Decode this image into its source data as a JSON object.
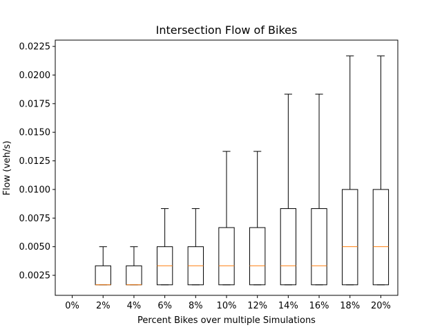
{
  "chart_data": {
    "type": "box",
    "title": "Intersection Flow of Bikes",
    "xlabel": "Percent Bikes over multiple Simulations",
    "ylabel": "Flow (veh/s)",
    "categories": [
      "0%",
      "2%",
      "4%",
      "6%",
      "8%",
      "10%",
      "12%",
      "14%",
      "16%",
      "18%",
      "20%"
    ],
    "ylim": [
      0.00075,
      0.02305
    ],
    "yticks": [
      0.0025,
      0.005,
      0.0075,
      0.01,
      0.0125,
      0.015,
      0.0175,
      0.02,
      0.0225
    ],
    "ytick_labels": [
      "0.0025",
      "0.0050",
      "0.0075",
      "0.0100",
      "0.0125",
      "0.0150",
      "0.0175",
      "0.0200",
      "0.0225"
    ],
    "boxes": [
      {
        "min": null,
        "q1": null,
        "median": null,
        "q3": null,
        "max": null
      },
      {
        "min": 0.00167,
        "q1": 0.00167,
        "median": 0.00167,
        "q3": 0.00333,
        "max": 0.005
      },
      {
        "min": 0.00167,
        "q1": 0.00167,
        "median": 0.00167,
        "q3": 0.00333,
        "max": 0.005
      },
      {
        "min": 0.00167,
        "q1": 0.00167,
        "median": 0.00333,
        "q3": 0.005,
        "max": 0.00833
      },
      {
        "min": 0.00167,
        "q1": 0.00167,
        "median": 0.00333,
        "q3": 0.005,
        "max": 0.00833
      },
      {
        "min": 0.00167,
        "q1": 0.00167,
        "median": 0.00333,
        "q3": 0.00667,
        "max": 0.01333
      },
      {
        "min": 0.00167,
        "q1": 0.00167,
        "median": 0.00333,
        "q3": 0.00667,
        "max": 0.01333
      },
      {
        "min": 0.00167,
        "q1": 0.00167,
        "median": 0.00333,
        "q3": 0.00833,
        "max": 0.01833
      },
      {
        "min": 0.00167,
        "q1": 0.00167,
        "median": 0.00333,
        "q3": 0.00833,
        "max": 0.01833
      },
      {
        "min": 0.00167,
        "q1": 0.00167,
        "median": 0.005,
        "q3": 0.01,
        "max": 0.02167
      },
      {
        "min": 0.00167,
        "q1": 0.00167,
        "median": 0.005,
        "q3": 0.01,
        "max": 0.02167
      }
    ],
    "median_color": "#ff7f0e",
    "box_color": "#000000",
    "grid": false,
    "legend": "none"
  }
}
